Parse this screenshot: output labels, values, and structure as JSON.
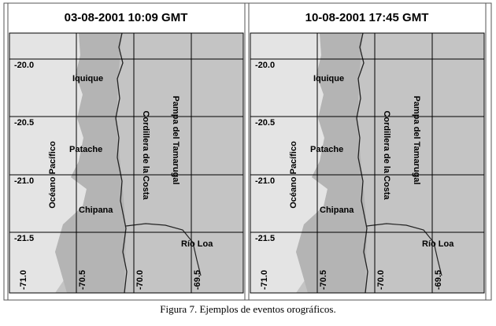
{
  "panels": [
    {
      "title": "03-08-2001 10:09 GMT",
      "latitude_labels": [
        "-20.0",
        "-20.5",
        "-21.0",
        "-21.5"
      ],
      "longitude_labels": [
        "-71.0",
        "-70.5",
        "-70.0",
        "-69.5"
      ],
      "places": [
        "Iquique",
        "Patache",
        "Chipana",
        "Río Loa",
        "Océano Pacífico",
        "Cordillera de la Costa",
        "Pampa del Tamarugal"
      ]
    },
    {
      "title": "10-08-2001 17:45 GMT",
      "latitude_labels": [
        "-20.0",
        "-20.5",
        "-21.0",
        "-21.5"
      ],
      "longitude_labels": [
        "-71.0",
        "-70.5",
        "-70.0",
        "-69.5"
      ],
      "places": [
        "Iquique",
        "Patache",
        "Chipana",
        "Río Loa",
        "Océano Pacífico",
        "Cordillera de la Costa",
        "Pampa del Tamarugal"
      ]
    }
  ],
  "caption": "Figura  7. Ejemplos de eventos orográficos."
}
